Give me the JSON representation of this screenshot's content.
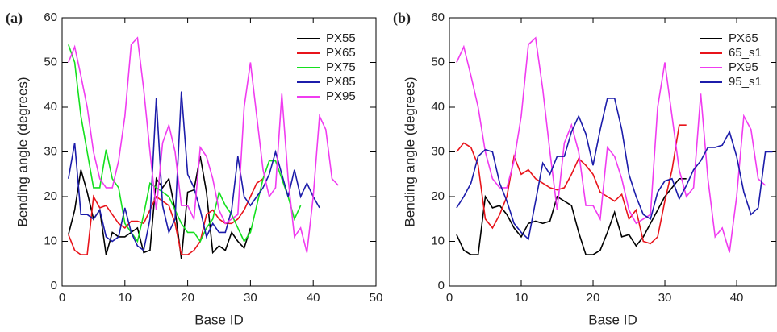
{
  "chart_data": [
    {
      "type": "line",
      "panel_label": "(a)",
      "x_label": "Base ID",
      "y_label": "Bending angle (degrees)",
      "xlim": [
        0,
        50
      ],
      "xticks": [
        0,
        10,
        20,
        30,
        40,
        50
      ],
      "ylim": [
        0,
        60
      ],
      "yticks": [
        0,
        10,
        20,
        30,
        40,
        50,
        60
      ],
      "legend": "upper right",
      "x": [
        1,
        2,
        3,
        4,
        5,
        6,
        7,
        8,
        9,
        10,
        11,
        12,
        13,
        14,
        15,
        16,
        17,
        18,
        19,
        20,
        21,
        22,
        23,
        24,
        25,
        26,
        27,
        28,
        29,
        30,
        31,
        32,
        33,
        34,
        35,
        36,
        37,
        38,
        39,
        40,
        41,
        42,
        43,
        44
      ],
      "series": [
        {
          "name": "PX55",
          "color": "#000000",
          "values": [
            11.5,
            17,
            26,
            21,
            15,
            17,
            7,
            12,
            11,
            11,
            12,
            13,
            7.5,
            8,
            24,
            22,
            24,
            17,
            6,
            21,
            21.5,
            29,
            21,
            7.5,
            9,
            8,
            12,
            10,
            8.5,
            13,
            null,
            null,
            null,
            null,
            null,
            null,
            null,
            null,
            null,
            null,
            null,
            null,
            null,
            null
          ]
        },
        {
          "name": "PX65",
          "color": "#e8141b",
          "values": [
            11.5,
            8,
            7,
            7,
            20,
            17.5,
            18,
            16,
            14,
            13,
            14.5,
            14.5,
            14,
            17,
            20,
            19,
            18,
            14,
            7,
            7,
            8,
            10,
            16,
            17,
            15,
            14,
            14,
            15,
            17,
            20,
            23,
            24,
            null,
            null,
            null,
            null,
            null,
            null,
            null,
            null,
            null,
            null,
            null,
            null
          ]
        },
        {
          "name": "PX75",
          "color": "#14e01e",
          "values": [
            54,
            50,
            38,
            30,
            22,
            22,
            30.5,
            24,
            22,
            14,
            12,
            10,
            16,
            23,
            22,
            21,
            20,
            17,
            14,
            12,
            12,
            10,
            13,
            15,
            21,
            18,
            16,
            13,
            10,
            12,
            18,
            24,
            28,
            28,
            24,
            20,
            15,
            18,
            null,
            null,
            null,
            null,
            null,
            null
          ]
        },
        {
          "name": "PX85",
          "color": "#1c1caa",
          "values": [
            24,
            32,
            16,
            16,
            15,
            17,
            11,
            10,
            11,
            17.5,
            12,
            9,
            8,
            15,
            42,
            18,
            12,
            15,
            43.5,
            25,
            22,
            17,
            11,
            14,
            12,
            12,
            17,
            29,
            20,
            18,
            20,
            22,
            25,
            30,
            25,
            20,
            26,
            20,
            23,
            20,
            17.5,
            null,
            null,
            null
          ]
        },
        {
          "name": "PX95",
          "color": "#f03cf0",
          "values": [
            50,
            53.5,
            47,
            40,
            30,
            24,
            22,
            22,
            28,
            38,
            54,
            55.5,
            44,
            30,
            17,
            32,
            36,
            30,
            18,
            18,
            15,
            31,
            29,
            24,
            17,
            14,
            15,
            16,
            40,
            50,
            38,
            26,
            20,
            22,
            43,
            24,
            11,
            13,
            7.5,
            20,
            38,
            35,
            24,
            22.5
          ]
        }
      ]
    },
    {
      "type": "line",
      "panel_label": "(b)",
      "x_label": "Base ID",
      "y_label": "Bending angle (degrees)",
      "xlim": [
        0,
        45.5
      ],
      "xticks": [
        0,
        10,
        20,
        30,
        40
      ],
      "ylim": [
        0,
        60
      ],
      "yticks": [
        0,
        10,
        20,
        30,
        40,
        50,
        60
      ],
      "legend": "upper right",
      "x": [
        1,
        2,
        3,
        4,
        5,
        6,
        7,
        8,
        9,
        10,
        11,
        12,
        13,
        14,
        15,
        16,
        17,
        18,
        19,
        20,
        21,
        22,
        23,
        24,
        25,
        26,
        27,
        28,
        29,
        30,
        31,
        32,
        33,
        34,
        35,
        36,
        37,
        38,
        39,
        40,
        41,
        42,
        43,
        44,
        45
      ],
      "series": [
        {
          "name": "PX65",
          "color": "#000000",
          "values": [
            11.5,
            8,
            7,
            7,
            20,
            17.5,
            18,
            16,
            13,
            11,
            14,
            14.5,
            14,
            14.5,
            20,
            19,
            18,
            12,
            7,
            7,
            8,
            12,
            16.5,
            11,
            11.5,
            9,
            11,
            14,
            17,
            20,
            22,
            24,
            24,
            null,
            null,
            null,
            null,
            null,
            null,
            null,
            null,
            null,
            null,
            null,
            null
          ]
        },
        {
          "name": "65_s1",
          "color": "#e8141b",
          "values": [
            30,
            32,
            31,
            27,
            15,
            13,
            16,
            20,
            29,
            25,
            26,
            24,
            23,
            22,
            21.5,
            22,
            25,
            28.5,
            27,
            25,
            21,
            20,
            19,
            20.5,
            15,
            17,
            10,
            9.5,
            11,
            19,
            26,
            36,
            36,
            null,
            null,
            null,
            null,
            null,
            null,
            null,
            null,
            null,
            null,
            null,
            null
          ]
        },
        {
          "name": "PX95",
          "color": "#f03cf0",
          "values": [
            50,
            53.5,
            47,
            40,
            30,
            24,
            22,
            22,
            28,
            38,
            54,
            55.5,
            44,
            30,
            17,
            32,
            36,
            30,
            18,
            18,
            15,
            31,
            29,
            24,
            17,
            14,
            15,
            16,
            40,
            50,
            38,
            26,
            20,
            22,
            43,
            24,
            11,
            13,
            7.5,
            20,
            38,
            35,
            24,
            22.5,
            null
          ]
        },
        {
          "name": "95_s1",
          "color": "#1c1caa",
          "values": [
            17.5,
            20,
            23,
            29,
            30.5,
            30,
            23,
            19,
            14,
            12,
            10.5,
            19,
            27.5,
            25,
            29,
            29,
            34.5,
            38,
            34,
            27,
            35,
            42,
            42,
            35,
            25,
            20,
            16,
            15,
            21,
            23.5,
            24,
            19.5,
            22.5,
            26,
            28,
            31,
            31,
            31.5,
            34.5,
            29,
            21,
            16,
            17.5,
            30,
            30
          ]
        }
      ]
    }
  ]
}
